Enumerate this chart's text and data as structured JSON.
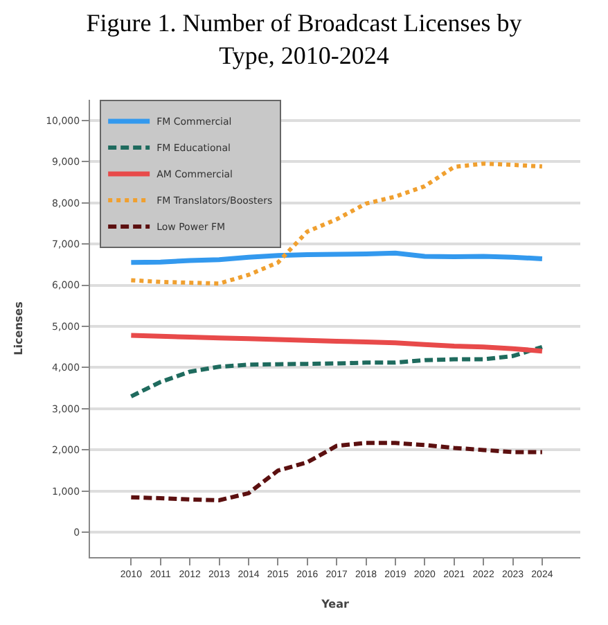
{
  "chart_data": {
    "type": "line",
    "title": "Figure 1. Number of Broadcast Licenses by Type, 2010-2024",
    "xlabel": "Year",
    "ylabel": "Licenses",
    "x": [
      2010,
      2011,
      2012,
      2013,
      2014,
      2015,
      2016,
      2017,
      2018,
      2019,
      2020,
      2021,
      2022,
      2023,
      2024
    ],
    "series": [
      {
        "name": "FM Commercial",
        "color": "#3399ee",
        "line_style": "solid",
        "values": [
          6550,
          6560,
          6600,
          6620,
          6680,
          6720,
          6740,
          6750,
          6760,
          6780,
          6700,
          6690,
          6700,
          6680,
          6640
        ]
      },
      {
        "name": "FM Educational",
        "color": "#1f6b5e",
        "line_style": "dashed",
        "values": [
          3300,
          3650,
          3900,
          4020,
          4070,
          4080,
          4090,
          4100,
          4120,
          4120,
          4180,
          4200,
          4200,
          4280,
          4500
        ]
      },
      {
        "name": "AM Commercial",
        "color": "#e84a4a",
        "line_style": "solid",
        "values": [
          4780,
          4760,
          4740,
          4720,
          4700,
          4680,
          4660,
          4640,
          4620,
          4600,
          4560,
          4520,
          4500,
          4460,
          4400
        ]
      },
      {
        "name": "FM Translators/Boosters",
        "color": "#f0a030",
        "line_style": "dotted",
        "values": [
          6120,
          6080,
          6060,
          6040,
          6250,
          6550,
          7300,
          7600,
          7980,
          8150,
          8400,
          8870,
          8950,
          8920,
          8880
        ]
      },
      {
        "name": "Low Power FM",
        "color": "#5c1010",
        "line_style": "dashed",
        "values": [
          850,
          830,
          800,
          780,
          950,
          1500,
          1700,
          2100,
          2170,
          2170,
          2120,
          2050,
          2000,
          1950,
          1950
        ]
      }
    ],
    "xlim": [
      2008.6,
      2025.3
    ],
    "xticks": [
      2010,
      2011,
      2012,
      2013,
      2014,
      2015,
      2016,
      2017,
      2018,
      2019,
      2020,
      2021,
      2022,
      2023,
      2024
    ],
    "ylim": [
      -600,
      10500
    ],
    "yticks": [
      {
        "value": 0,
        "label": "0"
      },
      {
        "value": 1000,
        "label": "1,000"
      },
      {
        "value": 2000,
        "label": "2,000"
      },
      {
        "value": 3000,
        "label": "3,000"
      },
      {
        "value": 4000,
        "label": "4,000"
      },
      {
        "value": 5000,
        "label": "5,000"
      },
      {
        "value": 6000,
        "label": "6,000"
      },
      {
        "value": 7000,
        "label": "7,000"
      },
      {
        "value": 8000,
        "label": "8,000"
      },
      {
        "value": 9000,
        "label": "9,000"
      },
      {
        "value": 10000,
        "label": "10,000"
      }
    ],
    "grid": "y",
    "legend": "top left",
    "marker": "none"
  }
}
